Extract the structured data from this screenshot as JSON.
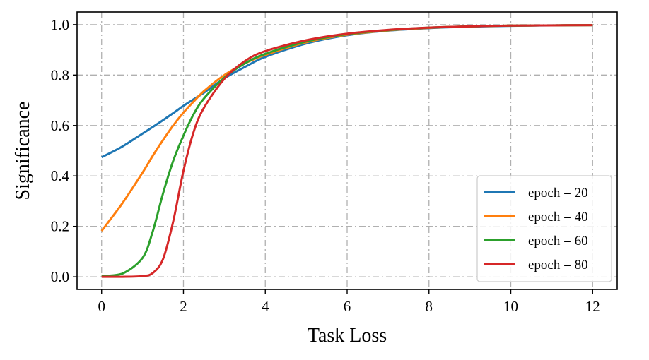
{
  "chart_data": {
    "type": "line",
    "title": "",
    "xlabel": "Task Loss",
    "ylabel": "Significance",
    "xlim": [
      -0.6,
      12.6
    ],
    "ylim": [
      -0.05,
      1.05
    ],
    "xticks": [
      0,
      2,
      4,
      6,
      8,
      10,
      12
    ],
    "xtick_labels": [
      "0",
      "2",
      "4",
      "6",
      "8",
      "10",
      "12"
    ],
    "yticks": [
      0.0,
      0.2,
      0.4,
      0.6,
      0.8,
      1.0
    ],
    "ytick_labels": [
      "0.0",
      "0.2",
      "0.4",
      "0.6",
      "0.8",
      "1.0"
    ],
    "grid": true,
    "legend_position": "lower-right",
    "x": [
      0,
      0.5,
      1,
      1.25,
      1.5,
      1.75,
      2,
      2.25,
      2.5,
      3,
      3.5,
      4,
      5,
      6,
      7,
      8,
      9,
      10,
      11,
      12
    ],
    "series": [
      {
        "name": "epoch = 20",
        "color": "#1f77b4",
        "values": [
          0.474,
          0.516,
          0.568,
          0.594,
          0.621,
          0.649,
          0.678,
          0.704,
          0.73,
          0.787,
          0.832,
          0.872,
          0.925,
          0.958,
          0.976,
          0.986,
          0.992,
          0.995,
          0.997,
          0.998
        ]
      },
      {
        "name": "epoch = 40",
        "color": "#ff7f0e",
        "values": [
          0.182,
          0.29,
          0.413,
          0.48,
          0.542,
          0.6,
          0.651,
          0.695,
          0.736,
          0.8,
          0.846,
          0.88,
          0.93,
          0.96,
          0.977,
          0.987,
          0.993,
          0.996,
          0.997,
          0.998
        ]
      },
      {
        "name": "epoch = 60",
        "color": "#2ca02c",
        "values": [
          0.003,
          0.012,
          0.075,
          0.18,
          0.33,
          0.46,
          0.56,
          0.645,
          0.707,
          0.79,
          0.846,
          0.884,
          0.933,
          0.962,
          0.978,
          0.988,
          0.993,
          0.996,
          0.997,
          0.998
        ]
      },
      {
        "name": "epoch = 80",
        "color": "#d62728",
        "values": [
          0.0,
          0.0,
          0.003,
          0.015,
          0.07,
          0.22,
          0.42,
          0.575,
          0.67,
          0.785,
          0.855,
          0.895,
          0.938,
          0.964,
          0.979,
          0.988,
          0.993,
          0.996,
          0.997,
          0.998
        ]
      }
    ]
  }
}
